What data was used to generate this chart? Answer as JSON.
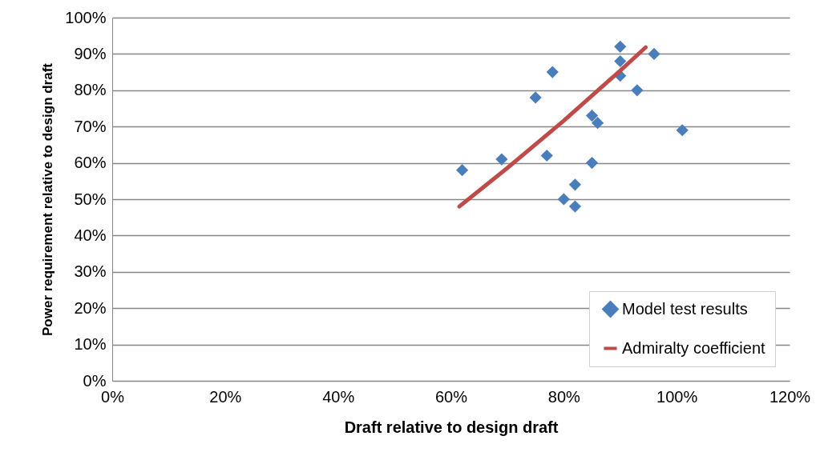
{
  "chart_data": {
    "type": "scatter",
    "xlabel": "Draft relative to design draft",
    "ylabel": "Power requirement relative to design draft",
    "xlim": [
      0,
      120
    ],
    "xticks": [
      {
        "value": 0,
        "label": "0%"
      },
      {
        "value": 20,
        "label": "20%"
      },
      {
        "value": 40,
        "label": "40%"
      },
      {
        "value": 60,
        "label": "60%"
      },
      {
        "value": 80,
        "label": "80%"
      },
      {
        "value": 100,
        "label": "100%"
      },
      {
        "value": 120,
        "label": "120%"
      }
    ],
    "ylim": [
      0,
      100
    ],
    "yticks": [
      {
        "value": 0,
        "label": "0%"
      },
      {
        "value": 10,
        "label": "10%"
      },
      {
        "value": 20,
        "label": "20%"
      },
      {
        "value": 30,
        "label": "30%"
      },
      {
        "value": 40,
        "label": "40%"
      },
      {
        "value": 50,
        "label": "50%"
      },
      {
        "value": 60,
        "label": "60%"
      },
      {
        "value": 70,
        "label": "70%"
      },
      {
        "value": 80,
        "label": "80%"
      },
      {
        "value": 90,
        "label": "90%"
      },
      {
        "value": 100,
        "label": "100%"
      }
    ],
    "grid": "y",
    "legend": "bottom right",
    "series": [
      {
        "name": "Model test results",
        "color": "#4a7ebb",
        "marker": "diamond",
        "x": [
          62,
          69,
          75,
          78,
          77,
          80,
          82,
          82,
          85,
          86,
          85,
          90,
          90,
          90,
          93,
          96,
          101
        ],
        "values": [
          58,
          61,
          78,
          85,
          62,
          50,
          48,
          54,
          73,
          71,
          60,
          92,
          88,
          84,
          80,
          90,
          69
        ]
      },
      {
        "name": "Admiralty coefficient",
        "type": "line",
        "color": "#be4b48",
        "marker": "none",
        "x": [
          61.5,
          70,
          80,
          90,
          94.5
        ],
        "values": [
          48,
          58.6,
          71.6,
          85.4,
          91.8
        ]
      }
    ]
  }
}
